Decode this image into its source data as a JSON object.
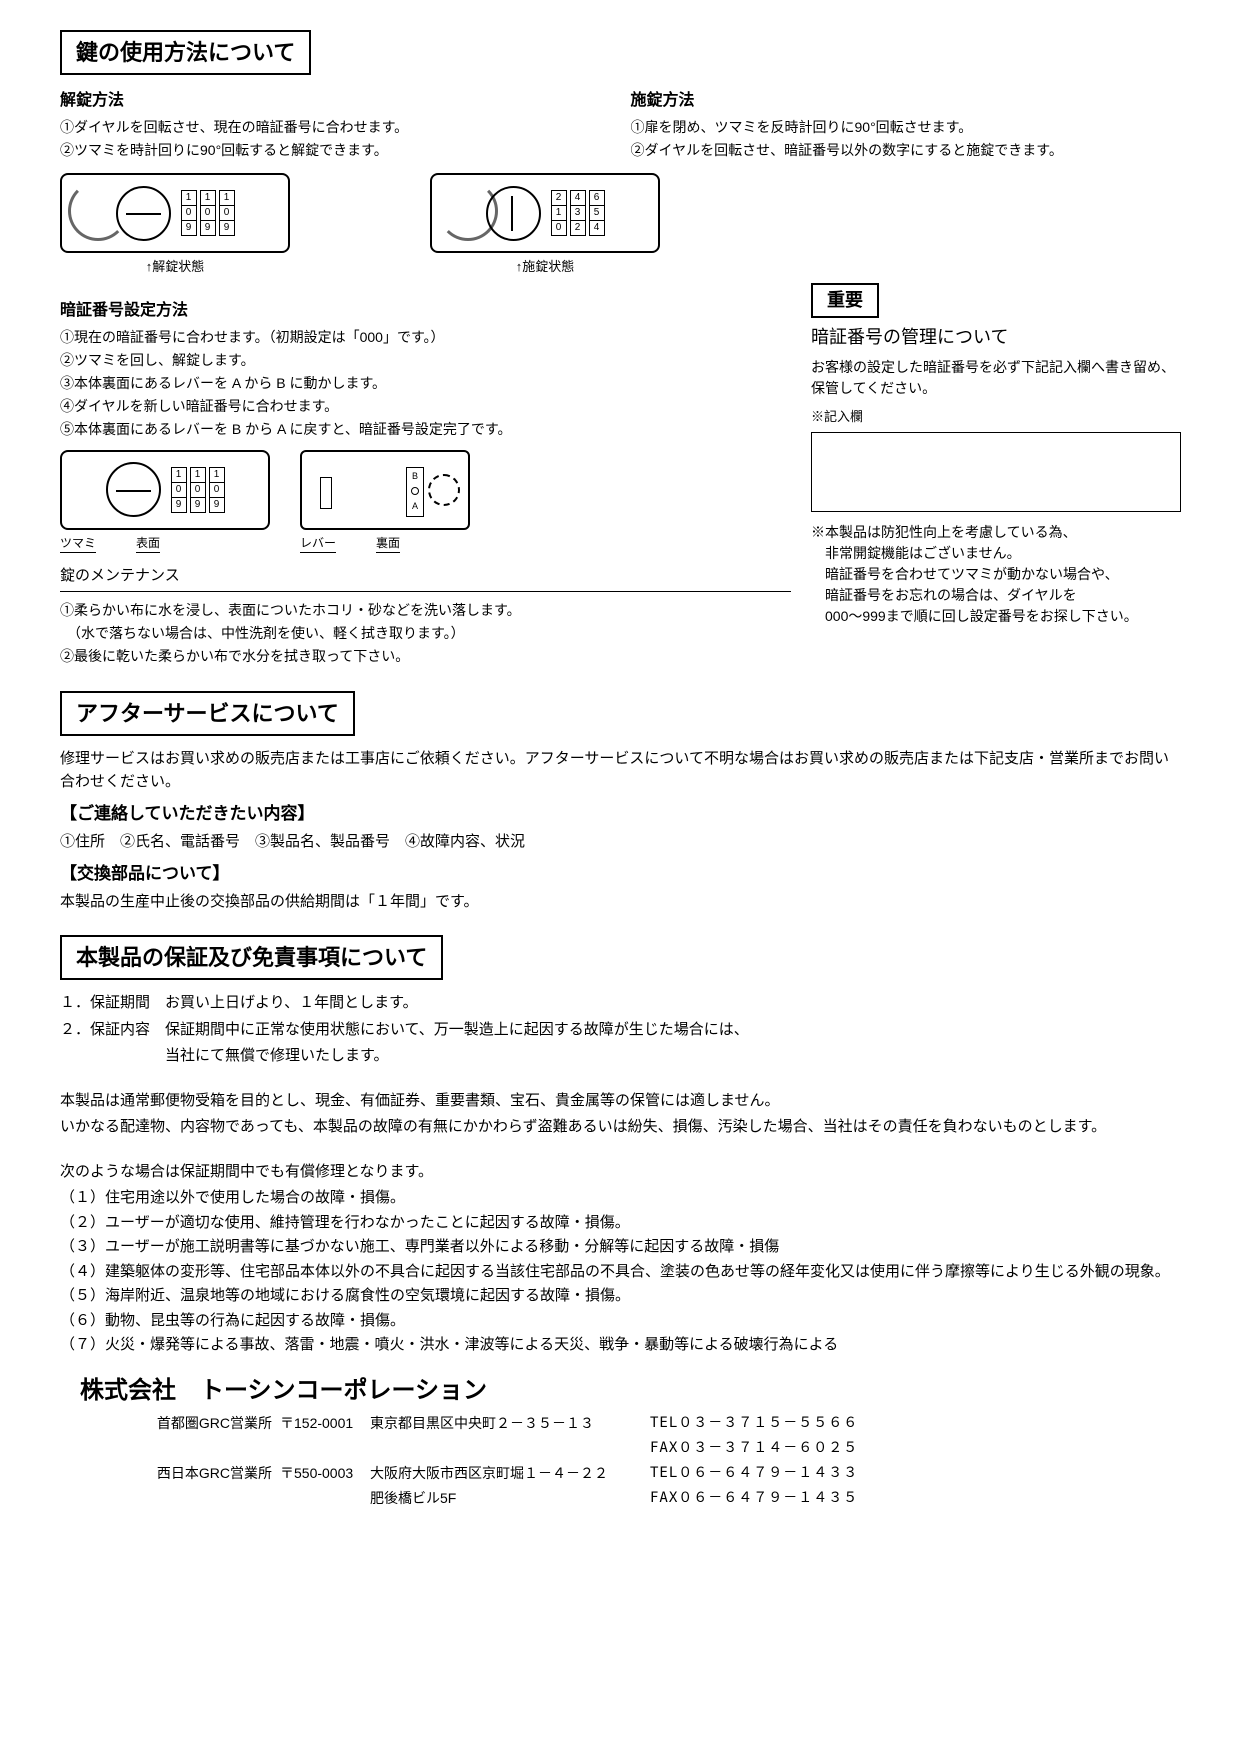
{
  "section1": {
    "title": "鍵の使用方法について",
    "unlock": {
      "heading": "解錠方法",
      "step1": "①ダイヤルを回転させ、現在の暗証番号に合わせます。",
      "step2": "②ツマミを時計回りに90°回転すると解錠できます。",
      "caption": "↑解錠状態",
      "dial_values": [
        [
          "1",
          "0",
          "9"
        ],
        [
          "1",
          "0",
          "9"
        ],
        [
          "1",
          "0",
          "9"
        ]
      ]
    },
    "lock": {
      "heading": "施錠方法",
      "step1": "①扉を閉め、ツマミを反時計回りに90°回転させます。",
      "step2": "②ダイヤルを回転させ、暗証番号以外の数字にすると施錠できます。",
      "caption": "↑施錠状態",
      "dial_values": [
        [
          "2",
          "1",
          "0"
        ],
        [
          "4",
          "3",
          "2"
        ],
        [
          "6",
          "5",
          "4"
        ]
      ]
    }
  },
  "pin_setting": {
    "heading": "暗証番号設定方法",
    "s1": "①現在の暗証番号に合わせます。（初期設定は「000」です。）",
    "s2": "②ツマミを回し、解錠します。",
    "s3": "③本体裏面にあるレバーを A から B に動かします。",
    "s4": "④ダイヤルを新しい暗証番号に合わせます。",
    "s5": "⑤本体裏面にあるレバーを B から A に戻すと、暗証番号設定完了です。",
    "front_dial_values": [
      [
        "1",
        "0",
        "9"
      ],
      [
        "1",
        "0",
        "9"
      ],
      [
        "1",
        "0",
        "9"
      ]
    ],
    "labels": {
      "tsumami": "ツマミ",
      "front": "表面",
      "lever": "レバー",
      "back": "裏面"
    },
    "lever_a": "A",
    "lever_b": "B"
  },
  "important": {
    "box": "重要",
    "title": "暗証番号の管理について",
    "line1": "お客様の設定した暗証番号を必ず下記記入欄へ書き留め、保管してください。",
    "note_label": "※記入欄",
    "disclaimer1": "※本製品は防犯性向上を考慮している為、",
    "disclaimer2": "　非常開錠機能はございません。",
    "disclaimer3": "　暗証番号を合わせてツマミが動かない場合や、",
    "disclaimer4": "　暗証番号をお忘れの場合は、ダイヤルを",
    "disclaimer5": "　000～999まで順に回し設定番号をお探し下さい。"
  },
  "maintenance": {
    "heading": "錠のメンテナンス",
    "s1": "①柔らかい布に水を浸し、表面についたホコリ・砂などを洗い落します。",
    "s1b": "　（水で落ちない場合は、中性洗剤を使い、軽く拭き取ります。）",
    "s2": "②最後に乾いた柔らかい布で水分を拭き取って下さい。"
  },
  "aftersvc": {
    "title": "アフターサービスについて",
    "p1": "修理サービスはお買い求めの販売店または工事店にご依頼ください。アフターサービスについて不明な場合はお買い求めの販売店または下記支店・営業所までお問い合わせください。",
    "contact_h": "【ご連絡していただきたい内容】",
    "contact_items": "①住所　②氏名、電話番号　③製品名、製品番号　④故障内容、状況",
    "parts_h": "【交換部品について】",
    "parts_text": "本製品の生産中止後の交換部品の供給期間は「１年間」です。"
  },
  "warranty": {
    "title": "本製品の保証及び免責事項について",
    "l1": "１．保証期間　お買い上日げより、１年間とします。",
    "l2": "２．保証内容　保証期間中に正常な使用状態において、万一製造上に起因する故障が生じた場合には、",
    "l2b": "　　　　　　　当社にて無償で修理いたします。",
    "p2a": "本製品は通常郵便物受箱を目的とし、現金、有価証券、重要書類、宝石、貴金属等の保管には適しません。",
    "p2b": "いかなる配達物、内容物であっても、本製品の故障の有無にかかわらず盗難あるいは紛失、損傷、汚染した場合、当社はその責任を負わないものとします。",
    "paid_h": "次のような場合は保証期間中でも有償修理となります。",
    "items": [
      "（１）住宅用途以外で使用した場合の故障・損傷。",
      "（２）ユーザーが適切な使用、維持管理を行わなかったことに起因する故障・損傷。",
      "（３）ユーザーが施工説明書等に基づかない施工、専門業者以外による移動・分解等に起因する故障・損傷",
      "（４）建築躯体の変形等、住宅部品本体以外の不具合に起因する当該住宅部品の不具合、塗装の色あせ等の経年変化又は使用に伴う摩擦等により生じる外観の現象。",
      "（５）海岸附近、温泉地等の地域における腐食性の空気環境に起因する故障・損傷。",
      "（６）動物、昆虫等の行為に起因する故障・損傷。",
      "（７）火災・爆発等による事故、落雷・地震・噴火・洪水・津波等による天災、戦争・暴動等による破壊行為による"
    ]
  },
  "company": {
    "name": "株式会社　トーシンコーポレーション",
    "offices": [
      {
        "name": "首都圏GRC営業所",
        "zip": "〒152-0001",
        "addr": "東京都目黒区中央町２－３５－１３",
        "addr2": "",
        "tel": "TEL０３－３７１５－５５６６",
        "fax": "FAX０３－３７１４－６０２５"
      },
      {
        "name": "西日本GRC営業所",
        "zip": "〒550-0003",
        "addr": "大阪府大阪市西区京町堀１－４－２２",
        "addr2": "肥後橋ビル5F",
        "tel": "TEL０６－６４７９－１４３３",
        "fax": "FAX０６－６４７９－１４３５"
      }
    ]
  }
}
